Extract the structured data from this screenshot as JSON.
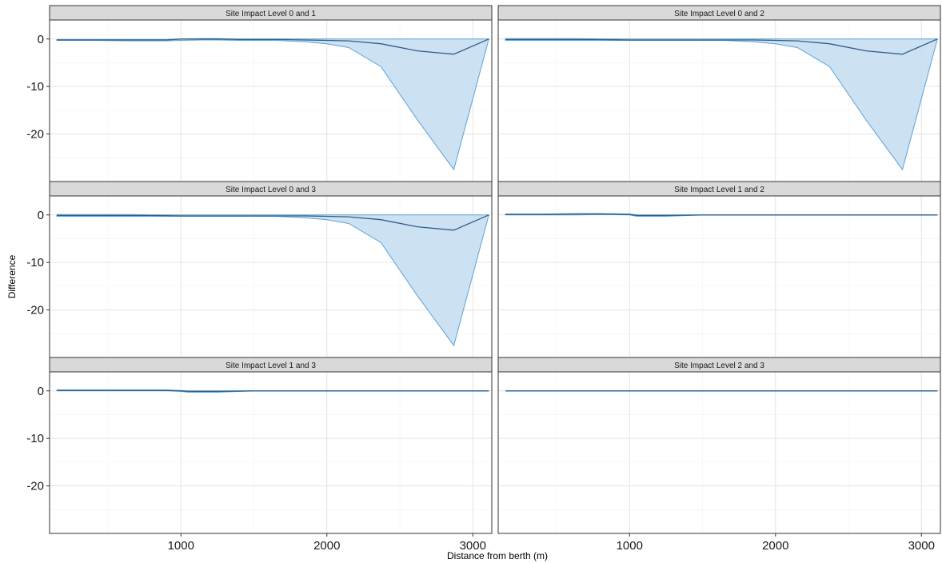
{
  "chart_data": {
    "type": "area",
    "xlabel": "Distance from berth (m)",
    "ylabel": "Difference",
    "xlim": [
      100,
      3130
    ],
    "ylim": [
      -30,
      4
    ],
    "x_ticks": [
      1000,
      2000,
      3000
    ],
    "y_ticks": [
      0,
      -10,
      -20
    ],
    "grid": true,
    "colors": {
      "fill": "#c6def1",
      "line": "#5ba3d9",
      "mean": "#2d5f8a",
      "strip": "#d9d9d9"
    },
    "panels": [
      {
        "title": "Site Impact Level 0 and 1",
        "x": [
          150,
          400,
          650,
          900,
          1000,
          1150,
          1250,
          1400,
          1650,
          1850,
          2000,
          2150,
          2370,
          2620,
          2870,
          3110
        ],
        "lower": [
          -0.3,
          -0.3,
          -0.4,
          -0.4,
          -0.3,
          -0.2,
          -0.2,
          -0.3,
          -0.3,
          -0.6,
          -1.0,
          -1.8,
          -5.8,
          -17.0,
          -27.5,
          0.0
        ],
        "upper": [
          -0.1,
          -0.1,
          -0.1,
          -0.1,
          0.0,
          0.1,
          0.1,
          0.0,
          0.0,
          0.0,
          0.0,
          0.0,
          0.0,
          0.0,
          0.0,
          0.0
        ],
        "mean": [
          -0.2,
          -0.2,
          -0.2,
          -0.2,
          0.0,
          0.0,
          0.0,
          -0.1,
          -0.1,
          -0.2,
          -0.3,
          -0.4,
          -1.0,
          -2.5,
          -3.2,
          0.0
        ]
      },
      {
        "title": "Site Impact Level 0 and 2",
        "x": [
          150,
          400,
          650,
          800,
          1000,
          1250,
          1500,
          1650,
          1850,
          2000,
          2150,
          2370,
          2620,
          2870,
          3110
        ],
        "lower": [
          -0.3,
          -0.3,
          -0.3,
          -0.3,
          -0.3,
          -0.3,
          -0.3,
          -0.3,
          -0.6,
          -1.0,
          -1.8,
          -5.8,
          -17.0,
          -27.5,
          0.0
        ],
        "upper": [
          0.1,
          0.1,
          0.1,
          0.0,
          0.0,
          0.0,
          0.0,
          0.0,
          0.0,
          0.0,
          0.0,
          0.0,
          0.0,
          0.0,
          0.0
        ],
        "mean": [
          -0.1,
          -0.1,
          -0.1,
          -0.1,
          -0.2,
          -0.2,
          -0.2,
          -0.2,
          -0.2,
          -0.3,
          -0.4,
          -1.0,
          -2.5,
          -3.2,
          0.0
        ]
      },
      {
        "title": "Site Impact Level 0 and 3",
        "x": [
          150,
          400,
          650,
          800,
          1000,
          1250,
          1500,
          1650,
          1850,
          2000,
          2150,
          2370,
          2620,
          2870,
          3110
        ],
        "lower": [
          -0.3,
          -0.3,
          -0.3,
          -0.3,
          -0.3,
          -0.3,
          -0.3,
          -0.3,
          -0.6,
          -1.0,
          -1.8,
          -5.8,
          -17.0,
          -27.5,
          0.0
        ],
        "upper": [
          0.1,
          0.1,
          0.1,
          0.0,
          0.0,
          0.0,
          0.0,
          0.0,
          0.0,
          0.0,
          0.0,
          0.0,
          0.0,
          0.0,
          0.0
        ],
        "mean": [
          -0.1,
          -0.1,
          -0.1,
          -0.1,
          -0.2,
          -0.2,
          -0.2,
          -0.2,
          -0.2,
          -0.3,
          -0.4,
          -1.0,
          -2.5,
          -3.2,
          0.0
        ]
      },
      {
        "title": "Site Impact Level 1 and 2",
        "x": [
          150,
          400,
          650,
          800,
          1000,
          1050,
          1250,
          1500,
          2000,
          2500,
          3110
        ],
        "lower": [
          0.0,
          0.0,
          0.0,
          0.1,
          0.0,
          -0.3,
          -0.3,
          0.0,
          0.0,
          0.0,
          0.0
        ],
        "upper": [
          0.2,
          0.2,
          0.3,
          0.3,
          0.2,
          0.0,
          0.0,
          0.0,
          0.0,
          0.0,
          0.0
        ],
        "mean": [
          0.1,
          0.1,
          0.2,
          0.2,
          0.1,
          -0.1,
          -0.1,
          0.0,
          0.0,
          0.0,
          0.0
        ]
      },
      {
        "title": "Site Impact Level 1 and 3",
        "x": [
          150,
          400,
          650,
          900,
          1000,
          1050,
          1250,
          1500,
          2000,
          2500,
          3110
        ],
        "lower": [
          0.0,
          0.0,
          0.0,
          0.0,
          -0.1,
          -0.3,
          -0.3,
          0.0,
          0.0,
          0.0,
          0.0
        ],
        "upper": [
          0.2,
          0.2,
          0.2,
          0.2,
          0.1,
          0.0,
          0.0,
          0.0,
          0.0,
          0.0,
          0.0
        ],
        "mean": [
          0.1,
          0.1,
          0.1,
          0.1,
          0.0,
          -0.1,
          -0.1,
          0.0,
          0.0,
          0.0,
          0.0
        ]
      },
      {
        "title": "Site Impact Level 2 and 3",
        "x": [
          150,
          1000,
          2000,
          3110
        ],
        "lower": [
          0.0,
          0.0,
          0.0,
          0.0
        ],
        "upper": [
          0.0,
          0.0,
          0.0,
          0.0
        ],
        "mean": [
          0.0,
          0.0,
          0.0,
          0.0
        ]
      }
    ]
  }
}
